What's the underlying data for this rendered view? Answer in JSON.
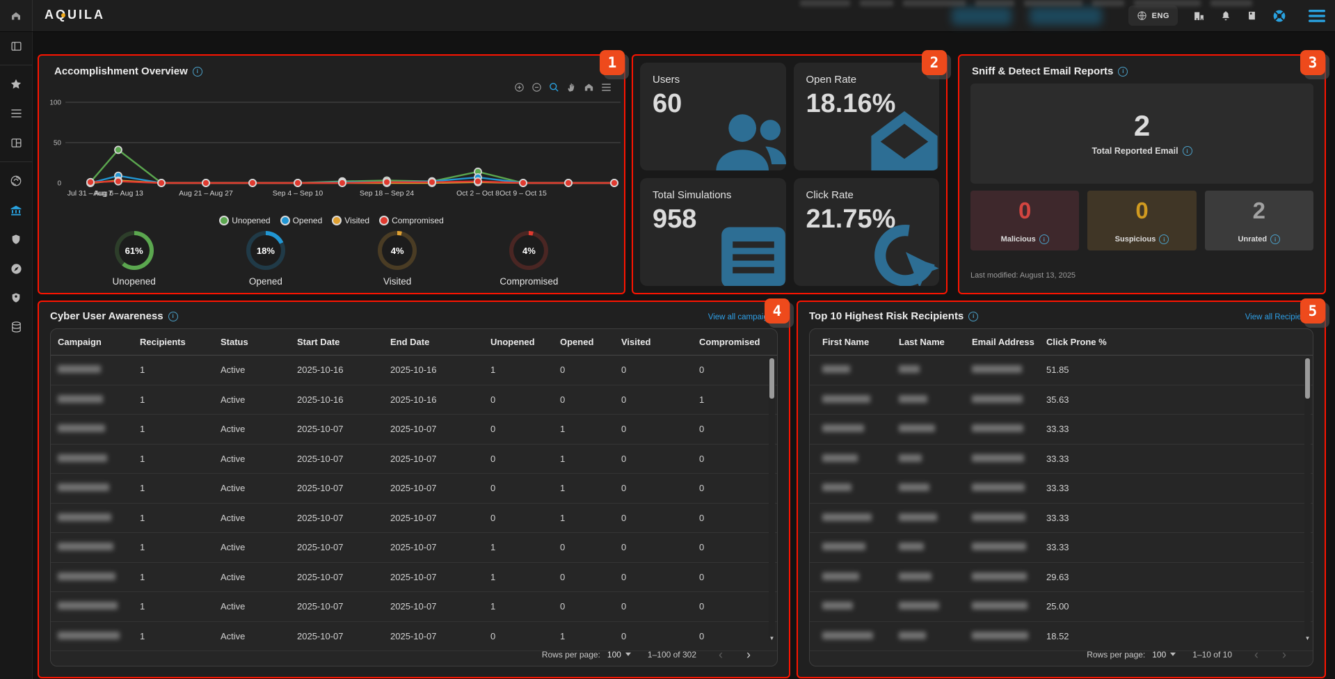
{
  "navbar": {
    "brand": "AQUILA",
    "language": "ENG"
  },
  "accomplishment": {
    "title": "Accomplishment Overview",
    "chart_data": {
      "type": "line",
      "points": 13,
      "ylim": [
        0,
        100
      ],
      "yticks": [
        0,
        50,
        100
      ],
      "grid": "horizontal",
      "legend_position": "bottom",
      "tick_labels": {
        "0": "Jul 31 – Aug 6",
        "1": "Aug 7 – Aug 13",
        "3": "Aug 21 – Aug 27",
        "5": "Sep 4 – Sep 10",
        "7": "Sep 18 – Sep 24",
        "9": "Oct 2 – Oct 8",
        "10": "Oct 9 – Oct 15"
      },
      "series": [
        {
          "name": "Unopened",
          "color": "#5ba74f",
          "values": [
            1,
            41,
            0,
            0,
            0,
            0,
            2,
            3,
            2,
            14,
            0,
            0,
            0
          ]
        },
        {
          "name": "Opened",
          "color": "#2196d3",
          "values": [
            0,
            9,
            0,
            0,
            0,
            0,
            1,
            1,
            2,
            7,
            0,
            0,
            0
          ]
        },
        {
          "name": "Visited",
          "color": "#dfa031",
          "values": [
            0,
            3,
            0,
            0,
            0,
            0,
            0,
            0,
            0,
            1,
            0,
            0,
            0
          ]
        },
        {
          "name": "Compromised",
          "color": "#e03a2f",
          "values": [
            1,
            2,
            0,
            0,
            0,
            0,
            0,
            1,
            1,
            2,
            0,
            0,
            0
          ]
        }
      ]
    },
    "donuts": [
      {
        "label": "Unopened",
        "value": 61,
        "display": "61%",
        "color": "#5ba74f"
      },
      {
        "label": "Opened",
        "value": 18,
        "display": "18%",
        "color": "#2196d3"
      },
      {
        "label": "Visited",
        "value": 4,
        "display": "4%",
        "color": "#dfa031"
      },
      {
        "label": "Compromised",
        "value": 4,
        "display": "4%",
        "color": "#e03a2f"
      }
    ]
  },
  "stats": {
    "cards": [
      {
        "label": "Users",
        "value": "60",
        "icon": "users-icon"
      },
      {
        "label": "Open Rate",
        "value": "18.16%",
        "icon": "open-mail-icon"
      },
      {
        "label": "Total Simulations",
        "value": "958",
        "icon": "simulations-list-icon"
      },
      {
        "label": "Click Rate",
        "value": "21.75%",
        "icon": "click-icon"
      }
    ]
  },
  "sniff": {
    "title": "Sniff & Detect Email Reports",
    "total_value": "2",
    "total_label": "Total Reported Email",
    "cards": [
      {
        "label": "Malicious",
        "value": "0"
      },
      {
        "label": "Suspicious",
        "value": "0"
      },
      {
        "label": "Unrated",
        "value": "2"
      }
    ],
    "last_modified": "Last modified: August 13, 2025"
  },
  "awareness": {
    "title": "Cyber User Awareness",
    "link": "View all campaigns",
    "columns": [
      "Campaign",
      "Recipients",
      "Status",
      "Start Date",
      "End Date",
      "Unopened",
      "Opened",
      "Visited",
      "Compromised"
    ],
    "rows": [
      {
        "recipients": "1",
        "status": "Active",
        "start_date": "2025-10-16",
        "end_date": "2025-10-16",
        "unopened": "1",
        "opened": "0",
        "visited": "0",
        "compromised": "0"
      },
      {
        "recipients": "1",
        "status": "Active",
        "start_date": "2025-10-16",
        "end_date": "2025-10-16",
        "unopened": "0",
        "opened": "0",
        "visited": "0",
        "compromised": "1"
      },
      {
        "recipients": "1",
        "status": "Active",
        "start_date": "2025-10-07",
        "end_date": "2025-10-07",
        "unopened": "0",
        "opened": "1",
        "visited": "0",
        "compromised": "0"
      },
      {
        "recipients": "1",
        "status": "Active",
        "start_date": "2025-10-07",
        "end_date": "2025-10-07",
        "unopened": "0",
        "opened": "1",
        "visited": "0",
        "compromised": "0"
      },
      {
        "recipients": "1",
        "status": "Active",
        "start_date": "2025-10-07",
        "end_date": "2025-10-07",
        "unopened": "0",
        "opened": "1",
        "visited": "0",
        "compromised": "0"
      },
      {
        "recipients": "1",
        "status": "Active",
        "start_date": "2025-10-07",
        "end_date": "2025-10-07",
        "unopened": "0",
        "opened": "1",
        "visited": "0",
        "compromised": "0"
      },
      {
        "recipients": "1",
        "status": "Active",
        "start_date": "2025-10-07",
        "end_date": "2025-10-07",
        "unopened": "1",
        "opened": "0",
        "visited": "0",
        "compromised": "0"
      },
      {
        "recipients": "1",
        "status": "Active",
        "start_date": "2025-10-07",
        "end_date": "2025-10-07",
        "unopened": "1",
        "opened": "0",
        "visited": "0",
        "compromised": "0"
      },
      {
        "recipients": "1",
        "status": "Active",
        "start_date": "2025-10-07",
        "end_date": "2025-10-07",
        "unopened": "1",
        "opened": "0",
        "visited": "0",
        "compromised": "0"
      },
      {
        "recipients": "1",
        "status": "Active",
        "start_date": "2025-10-07",
        "end_date": "2025-10-07",
        "unopened": "0",
        "opened": "1",
        "visited": "0",
        "compromised": "0"
      }
    ],
    "footer": {
      "rows_per_page_label": "Rows per page:",
      "rows_per_page": "100",
      "range": "1–100 of 302"
    }
  },
  "recipients": {
    "title": "Top 10 Highest Risk Recipients",
    "link": "View all Recipients",
    "columns": [
      "First Name",
      "Last Name",
      "Email Address",
      "Click Prone %"
    ],
    "rows": [
      {
        "click_prone": "51.85"
      },
      {
        "click_prone": "35.63"
      },
      {
        "click_prone": "33.33"
      },
      {
        "click_prone": "33.33"
      },
      {
        "click_prone": "33.33"
      },
      {
        "click_prone": "33.33"
      },
      {
        "click_prone": "33.33"
      },
      {
        "click_prone": "29.63"
      },
      {
        "click_prone": "25.00"
      },
      {
        "click_prone": "18.52"
      }
    ],
    "footer": {
      "rows_per_page_label": "Rows per page:",
      "rows_per_page": "100",
      "range": "1–10 of 10"
    }
  },
  "annotations": [
    "1",
    "2",
    "3",
    "4",
    "5"
  ],
  "colors": {
    "accent": "#29a2e0",
    "link": "#2e9fe6",
    "annotation": "#ee4a1c",
    "stat_icon": "#2d6e94",
    "green": "#5ba74f",
    "blue": "#2196d3",
    "orange": "#dfa031",
    "red": "#e03a2f"
  }
}
